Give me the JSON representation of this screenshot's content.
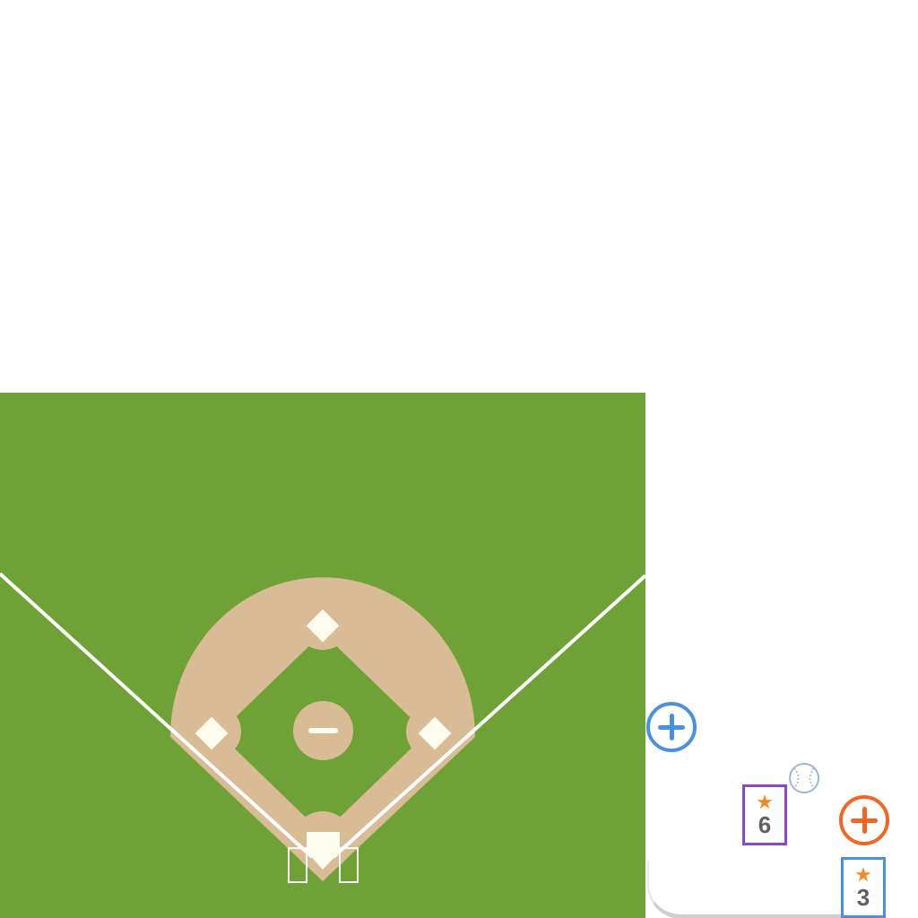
{
  "field": {
    "grass_color": "#6ea236",
    "dirt_color": "#d9bc96",
    "base_color": "#fffdf0",
    "line_color": "#ffffff"
  },
  "controls": {
    "zoom_out_icon": "minus-icon",
    "add_player_blue_icon": "plus-icon",
    "add_player_orange_icon": "plus-icon",
    "ball_icon": "baseball-icon"
  },
  "players": [
    {
      "number": "6",
      "border_color": "#8e44c4",
      "star": "★"
    },
    {
      "number": "3",
      "border_color": "#4a90e2",
      "star": "★"
    }
  ]
}
